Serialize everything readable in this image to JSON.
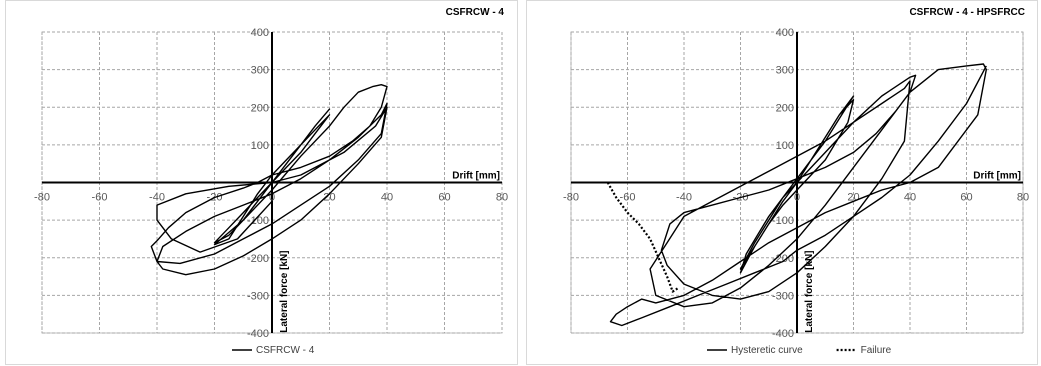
{
  "chart_data": [
    {
      "type": "line",
      "title": "CSFRCW - 4",
      "xlabel": "Drift [mm]",
      "ylabel": "Lateral force [kN]",
      "xlim": [
        -80,
        80
      ],
      "ylim": [
        -400,
        400
      ],
      "xticks": [
        -80,
        -60,
        -40,
        -20,
        0,
        20,
        40,
        60,
        80
      ],
      "yticks": [
        -400,
        -300,
        -200,
        -100,
        100,
        200,
        300,
        400
      ],
      "grid": true,
      "legend_position": "bottom",
      "series": [
        {
          "name": "CSFRCW - 4",
          "style": "solid",
          "color": "#000000",
          "x": [
            0,
            5,
            10,
            15,
            20,
            15,
            10,
            5,
            0,
            -5,
            -10,
            -15,
            -20,
            -15,
            -10,
            -5,
            0,
            5,
            10,
            15,
            20,
            15,
            10,
            5,
            0,
            -5,
            -10,
            -15,
            -20,
            -10,
            0,
            10,
            20,
            25,
            30,
            35,
            38,
            40,
            38,
            34,
            28,
            20,
            10,
            0,
            -5,
            -10,
            -20,
            -30,
            -36,
            -40,
            -42,
            -40,
            -32,
            -20,
            -10,
            0,
            10,
            20,
            30,
            38,
            40,
            38,
            30,
            20,
            10,
            0,
            -10,
            -20,
            -30,
            -38,
            -40,
            -38,
            -30,
            -20,
            -10,
            0,
            10,
            20,
            30,
            38,
            40,
            36,
            25,
            10,
            0,
            -15,
            -30,
            -40,
            -40,
            -35,
            -25,
            -12,
            0
          ],
          "y": [
            0,
            50,
            100,
            150,
            195,
            150,
            100,
            50,
            0,
            -50,
            -100,
            -140,
            -160,
            -120,
            -80,
            -40,
            0,
            40,
            80,
            130,
            180,
            140,
            100,
            60,
            20,
            -30,
            -90,
            -150,
            -165,
            -100,
            -20,
            70,
            150,
            200,
            240,
            255,
            260,
            255,
            200,
            150,
            110,
            70,
            40,
            20,
            0,
            -15,
            -40,
            -80,
            -120,
            -155,
            -170,
            -210,
            -215,
            -190,
            -150,
            -110,
            -60,
            -10,
            60,
            130,
            210,
            180,
            120,
            60,
            10,
            -30,
            -60,
            -90,
            -130,
            -170,
            -210,
            -230,
            -245,
            -230,
            -195,
            -150,
            -100,
            -30,
            50,
            120,
            200,
            150,
            80,
            20,
            0,
            -10,
            -30,
            -60,
            -100,
            -150,
            -185,
            -150,
            -50
          ]
        }
      ]
    },
    {
      "type": "line",
      "title": "CSFRCW - 4 - HPSFRCC",
      "xlabel": "Drift [mm]",
      "ylabel": "Lateral force [kN]",
      "xlim": [
        -80,
        80
      ],
      "ylim": [
        -400,
        400
      ],
      "xticks": [
        -80,
        -60,
        -40,
        -20,
        0,
        20,
        40,
        60,
        80
      ],
      "yticks": [
        -400,
        -300,
        -200,
        -100,
        100,
        200,
        300,
        400
      ],
      "grid": true,
      "legend_position": "bottom",
      "series": [
        {
          "name": "Hysteretic curve",
          "style": "solid",
          "color": "#000000",
          "x": [
            0,
            5,
            10,
            15,
            20,
            15,
            10,
            5,
            0,
            -5,
            -10,
            -15,
            -20,
            -15,
            -10,
            -5,
            0,
            5,
            10,
            15,
            20,
            18,
            14,
            10,
            5,
            0,
            -5,
            -10,
            -15,
            -20,
            -18,
            -14,
            -10,
            -5,
            0,
            10,
            20,
            30,
            40,
            42,
            40,
            35,
            28,
            20,
            10,
            0,
            -10,
            -20,
            -30,
            -40,
            -45,
            -48,
            -46,
            -40,
            -30,
            -20,
            -10,
            0,
            10,
            20,
            30,
            38,
            40,
            38,
            30,
            20,
            10,
            0,
            -10,
            -20,
            -30,
            -40,
            -46,
            -52,
            -50,
            -40,
            -30,
            -20,
            -10,
            0,
            10,
            20,
            30,
            40,
            50,
            60,
            66,
            67,
            64,
            50,
            40,
            30,
            20,
            10,
            0,
            -10,
            -20,
            -30,
            -40,
            -50,
            -55,
            -60,
            -64,
            -66,
            -62,
            -55,
            -45,
            -35,
            -25,
            -15,
            -5,
            0,
            10,
            20,
            30,
            40,
            50,
            60,
            67
          ],
          "y": [
            0,
            60,
            120,
            180,
            230,
            170,
            110,
            60,
            10,
            -40,
            -100,
            -160,
            -230,
            -170,
            -110,
            -50,
            0,
            60,
            120,
            180,
            220,
            160,
            110,
            60,
            20,
            -20,
            -60,
            -110,
            -170,
            -240,
            -190,
            -140,
            -90,
            -40,
            0,
            80,
            160,
            230,
            280,
            285,
            240,
            190,
            130,
            80,
            40,
            10,
            -20,
            -40,
            -60,
            -80,
            -110,
            -180,
            -220,
            -270,
            -300,
            -310,
            -290,
            -240,
            -170,
            -90,
            10,
            110,
            270,
            250,
            210,
            160,
            110,
            70,
            30,
            -10,
            -50,
            -90,
            -160,
            -230,
            -300,
            -330,
            -320,
            -280,
            -220,
            -150,
            -60,
            40,
            140,
            240,
            300,
            310,
            315,
            300,
            180,
            40,
            0,
            -20,
            -50,
            -80,
            -120,
            -160,
            -210,
            -260,
            -300,
            -320,
            -310,
            -330,
            -350,
            -370,
            -380,
            -360,
            -330,
            -300,
            -270,
            -240,
            -210,
            -180,
            -140,
            -90,
            -40,
            20,
            110,
            210,
            310
          ],
          "segments_note": ""
        },
        {
          "name": "Failure",
          "style": "dotted",
          "color": "#000000",
          "x": [
            -67,
            -64,
            -60,
            -56,
            -52,
            -49,
            -46,
            -44,
            -42
          ],
          "y": [
            0,
            -40,
            -80,
            -110,
            -150,
            -200,
            -250,
            -290,
            -280
          ]
        }
      ]
    }
  ]
}
